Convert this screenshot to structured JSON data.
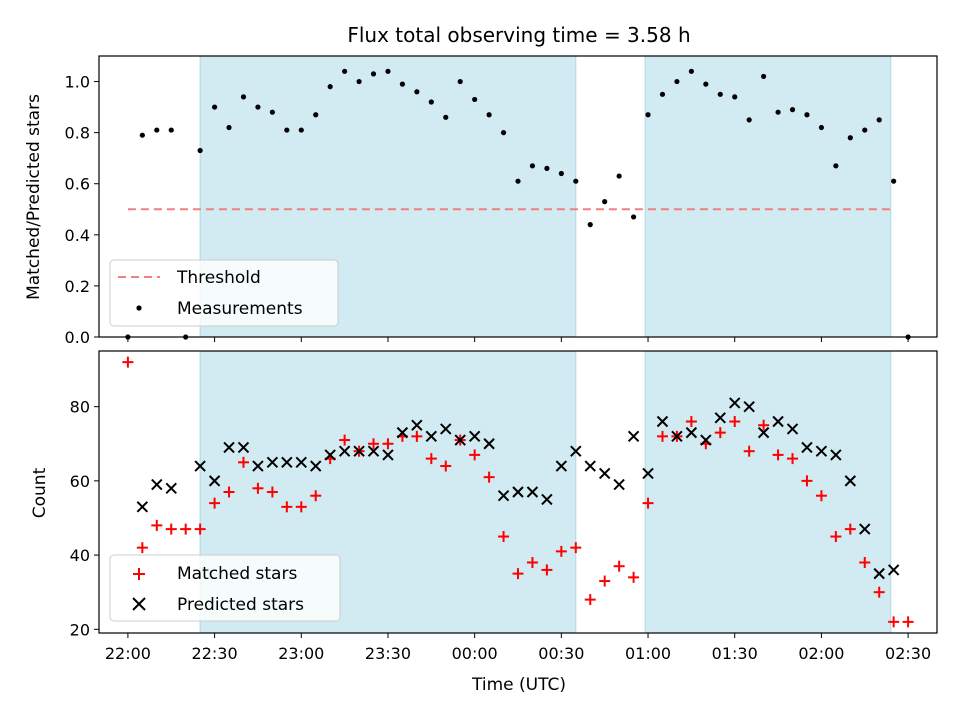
{
  "chart_data": [
    {
      "type": "scatter",
      "title": "Flux total observing time = 3.58 h",
      "xlabel": "",
      "ylabel": "Matched/Predicted stars",
      "xlim": [
        "21:50",
        "02:40"
      ],
      "ylim": [
        0,
        1.1
      ],
      "yticks": [
        0.0,
        0.2,
        0.4,
        0.6,
        0.8,
        1.0
      ],
      "yticklabels": [
        "0.0",
        "0.2",
        "0.4",
        "0.6",
        "0.8",
        "1.0"
      ],
      "shaded_intervals": [
        [
          "22:25",
          "00:35"
        ],
        [
          "00:59",
          "02:24"
        ]
      ],
      "shade_color": "#add8e6",
      "threshold": {
        "label": "Threshold",
        "value": 0.5,
        "x_range": [
          "22:00",
          "02:25"
        ],
        "color": "#f08080",
        "style": "dashed"
      },
      "series": [
        {
          "name": "Measurements",
          "color": "#000000",
          "marker": "dot",
          "x": [
            "22:00",
            "22:05",
            "22:10",
            "22:15",
            "22:20",
            "22:25",
            "22:30",
            "22:35",
            "22:40",
            "22:45",
            "22:50",
            "22:55",
            "23:00",
            "23:05",
            "23:10",
            "23:15",
            "23:20",
            "23:25",
            "23:30",
            "23:35",
            "23:40",
            "23:45",
            "23:50",
            "23:55",
            "00:00",
            "00:05",
            "00:10",
            "00:15",
            "00:20",
            "00:25",
            "00:30",
            "00:35",
            "00:40",
            "00:45",
            "00:50",
            "00:55",
            "01:00",
            "01:05",
            "01:10",
            "01:15",
            "01:20",
            "01:25",
            "01:30",
            "01:35",
            "01:40",
            "01:45",
            "01:50",
            "01:55",
            "02:00",
            "02:05",
            "02:10",
            "02:15",
            "02:20",
            "02:25",
            "02:30"
          ],
          "values": [
            0.0,
            0.79,
            0.81,
            0.81,
            0.0,
            0.73,
            0.9,
            0.82,
            0.94,
            0.9,
            0.88,
            0.81,
            0.81,
            0.87,
            0.98,
            1.04,
            1.0,
            1.03,
            1.04,
            0.99,
            0.96,
            0.92,
            0.86,
            1.0,
            0.93,
            0.87,
            0.8,
            0.61,
            0.67,
            0.66,
            0.64,
            0.61,
            0.44,
            0.53,
            0.63,
            0.47,
            0.87,
            0.95,
            1.0,
            1.04,
            0.99,
            0.95,
            0.94,
            0.85,
            1.02,
            0.88,
            0.89,
            0.87,
            0.82,
            0.67,
            0.78,
            0.81,
            0.85,
            0.61,
            0.0
          ]
        }
      ],
      "legend": {
        "location": "lower-left",
        "entries": [
          "Threshold",
          "Measurements"
        ]
      }
    },
    {
      "type": "scatter",
      "title": "",
      "xlabel": "Time (UTC)",
      "ylabel": "Count",
      "xlim": [
        "21:50",
        "02:40"
      ],
      "ylim": [
        19,
        95
      ],
      "yticks": [
        20,
        40,
        60,
        80
      ],
      "yticklabels": [
        "20",
        "40",
        "60",
        "80"
      ],
      "xticklabels": [
        "22:00",
        "22:30",
        "23:00",
        "23:30",
        "00:00",
        "00:30",
        "01:00",
        "01:30",
        "02:00",
        "02:30"
      ],
      "shaded_intervals": [
        [
          "22:25",
          "00:35"
        ],
        [
          "00:59",
          "02:24"
        ]
      ],
      "shade_color": "#add8e6",
      "series": [
        {
          "name": "Matched stars",
          "color": "#ff0000",
          "marker": "plus",
          "x": [
            "22:00",
            "22:05",
            "22:10",
            "22:15",
            "22:20",
            "22:25",
            "22:30",
            "22:35",
            "22:40",
            "22:45",
            "22:50",
            "22:55",
            "23:00",
            "23:05",
            "23:10",
            "23:15",
            "23:20",
            "23:25",
            "23:30",
            "23:35",
            "23:40",
            "23:45",
            "23:50",
            "23:55",
            "00:00",
            "00:05",
            "00:10",
            "00:15",
            "00:20",
            "00:25",
            "00:30",
            "00:35",
            "00:40",
            "00:45",
            "00:50",
            "00:55",
            "01:00",
            "01:05",
            "01:10",
            "01:15",
            "01:20",
            "01:25",
            "01:30",
            "01:35",
            "01:40",
            "01:45",
            "01:50",
            "01:55",
            "02:00",
            "02:05",
            "02:10",
            "02:15",
            "02:20",
            "02:25",
            "02:30"
          ],
          "values": [
            92,
            42,
            48,
            47,
            47,
            47,
            54,
            57,
            65,
            58,
            57,
            53,
            53,
            56,
            66,
            71,
            68,
            70,
            70,
            72,
            72,
            66,
            64,
            71,
            67,
            61,
            45,
            35,
            38,
            36,
            41,
            42,
            28,
            33,
            37,
            34,
            54,
            72,
            72,
            76,
            70,
            73,
            76,
            68,
            75,
            67,
            66,
            60,
            56,
            45,
            47,
            38,
            30,
            22,
            22
          ]
        },
        {
          "name": "Predicted stars",
          "color": "#000000",
          "marker": "x",
          "x": [
            "22:05",
            "22:10",
            "22:15",
            "22:25",
            "22:30",
            "22:35",
            "22:40",
            "22:45",
            "22:50",
            "22:55",
            "23:00",
            "23:05",
            "23:10",
            "23:15",
            "23:20",
            "23:25",
            "23:30",
            "23:35",
            "23:40",
            "23:45",
            "23:50",
            "23:55",
            "00:00",
            "00:05",
            "00:10",
            "00:15",
            "00:20",
            "00:25",
            "00:30",
            "00:35",
            "00:40",
            "00:45",
            "00:50",
            "00:55",
            "01:00",
            "01:05",
            "01:10",
            "01:15",
            "01:20",
            "01:25",
            "01:30",
            "01:35",
            "01:40",
            "01:45",
            "01:50",
            "01:55",
            "02:00",
            "02:05",
            "02:10",
            "02:15",
            "02:20",
            "02:25"
          ],
          "values": [
            53,
            59,
            58,
            64,
            60,
            69,
            69,
            64,
            65,
            65,
            65,
            64,
            67,
            68,
            68,
            68,
            67,
            73,
            75,
            72,
            74,
            71,
            72,
            70,
            56,
            57,
            57,
            55,
            64,
            68,
            64,
            62,
            59,
            72,
            62,
            76,
            72,
            73,
            71,
            77,
            81,
            80,
            73,
            76,
            74,
            69,
            68,
            67,
            60,
            47,
            35,
            36
          ]
        }
      ],
      "legend": {
        "location": "lower-left",
        "entries": [
          "Matched stars",
          "Predicted stars"
        ]
      }
    }
  ]
}
